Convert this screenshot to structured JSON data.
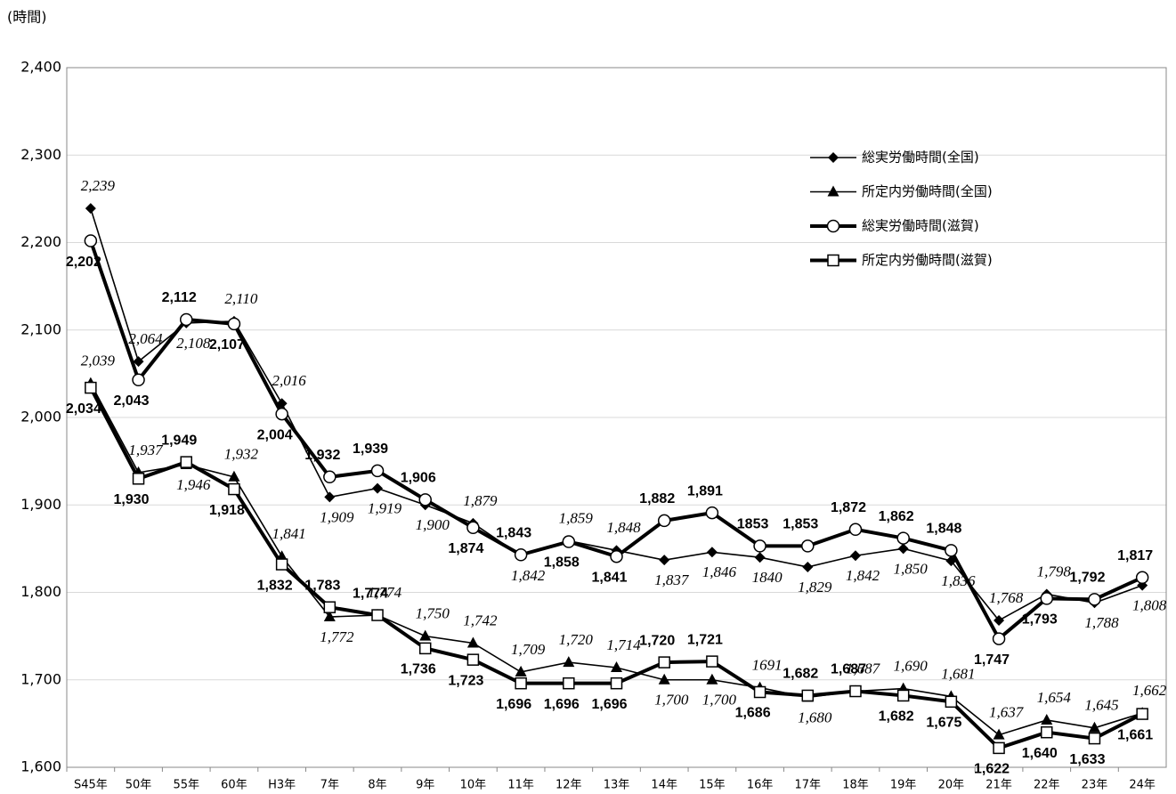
{
  "chart_data": {
    "type": "line",
    "y_label": "(時間)",
    "categories": [
      "S45年",
      "50年",
      "55年",
      "60年",
      "H3年",
      "7年",
      "8年",
      "9年",
      "10年",
      "11年",
      "12年",
      "13年",
      "14年",
      "15年",
      "16年",
      "17年",
      "18年",
      "19年",
      "20年",
      "21年",
      "22年",
      "23年",
      "24年"
    ],
    "ylim": [
      1600,
      2400
    ],
    "yticks": [
      {
        "value": 1600,
        "label": "1,600"
      },
      {
        "value": 1700,
        "label": "1,700"
      },
      {
        "value": 1800,
        "label": "1,800"
      },
      {
        "value": 1900,
        "label": "1,900"
      },
      {
        "value": 2000,
        "label": "2,000"
      },
      {
        "value": 2100,
        "label": "2,100"
      },
      {
        "value": 2200,
        "label": "2,200"
      },
      {
        "value": 2300,
        "label": "2,300"
      },
      {
        "value": 2400,
        "label": "2,400"
      }
    ],
    "grid": true,
    "legend": "right",
    "series": [
      {
        "name": "総実労働時間(全国)",
        "color": "#000000",
        "marker": "diamond",
        "values": [
          2239,
          2064,
          2108,
          2110,
          2016,
          1909,
          1919,
          1900,
          1879,
          1842,
          1859,
          1848,
          1837,
          1846,
          1840,
          1829,
          1842,
          1850,
          1836,
          1768,
          1798,
          1788,
          1808
        ],
        "value_labels": [
          "2,239",
          "2,064",
          "2,108",
          "2,110",
          "2,016",
          "1,909",
          "1,919",
          "1,900",
          "1,879",
          "1,842",
          "1,859",
          "1,848",
          "1,837",
          "1,846",
          "1840",
          "1,829",
          "1,842",
          "1,850",
          "1,836",
          "1,768",
          "1,798",
          "1,788",
          "1,808"
        ]
      },
      {
        "name": "所定内労働時間(全国)",
        "color": "#000000",
        "marker": "triangle",
        "values": [
          2039,
          1937,
          1946,
          1932,
          1841,
          1772,
          1774,
          1750,
          1742,
          1709,
          1720,
          1714,
          1700,
          1700,
          1691,
          1680,
          1687,
          1690,
          1681,
          1637,
          1654,
          1645,
          1662
        ],
        "value_labels": [
          "2,039",
          "1,937",
          "1,946",
          "1,932",
          "1,841",
          "1,772",
          "1,774",
          "1,750",
          "1,742",
          "1,709",
          "1,720",
          "1,714",
          "1,700",
          "1,700",
          "1691",
          "1,680",
          "1,687",
          "1,690",
          "1,681",
          "1,637",
          "1,654",
          "1,645",
          "1,662"
        ]
      },
      {
        "name": "総実労働時間(滋賀)",
        "color": "#000000",
        "marker": "circle",
        "values": [
          2202,
          2043,
          2112,
          2107,
          2004,
          1932,
          1939,
          1906,
          1874,
          1843,
          1858,
          1841,
          1882,
          1891,
          1853,
          1853,
          1872,
          1862,
          1848,
          1747,
          1793,
          1792,
          1817
        ],
        "value_labels": [
          "2,202",
          "2,043",
          "2,112",
          "2,107",
          "2,004",
          "1,932",
          "1,939",
          "1,906",
          "1,874",
          "1,843",
          "1,858",
          "1,841",
          "1,882",
          "1,891",
          "1853",
          "1,853",
          "1,872",
          "1,862",
          "1,848",
          "1,747",
          "1,793",
          "1,792",
          "1,817"
        ]
      },
      {
        "name": "所定内労働時間(滋賀)",
        "color": "#000000",
        "marker": "square",
        "values": [
          2034,
          1930,
          1949,
          1918,
          1832,
          1783,
          1774,
          1736,
          1723,
          1696,
          1696,
          1696,
          1720,
          1721,
          1686,
          1682,
          1687,
          1682,
          1675,
          1622,
          1640,
          1633,
          1661
        ],
        "value_labels": [
          "2,034",
          "1,930",
          "1,949",
          "1,918",
          "1,832",
          "1,783",
          "1,774",
          "1,736",
          "1,723",
          "1,696",
          "1,696",
          "1,696",
          "1,720",
          "1,721",
          "1,686",
          "1,682",
          "1,687",
          "1,682",
          "1,675",
          "1,622",
          "1,640",
          "1,633",
          "1,661"
        ]
      }
    ]
  }
}
